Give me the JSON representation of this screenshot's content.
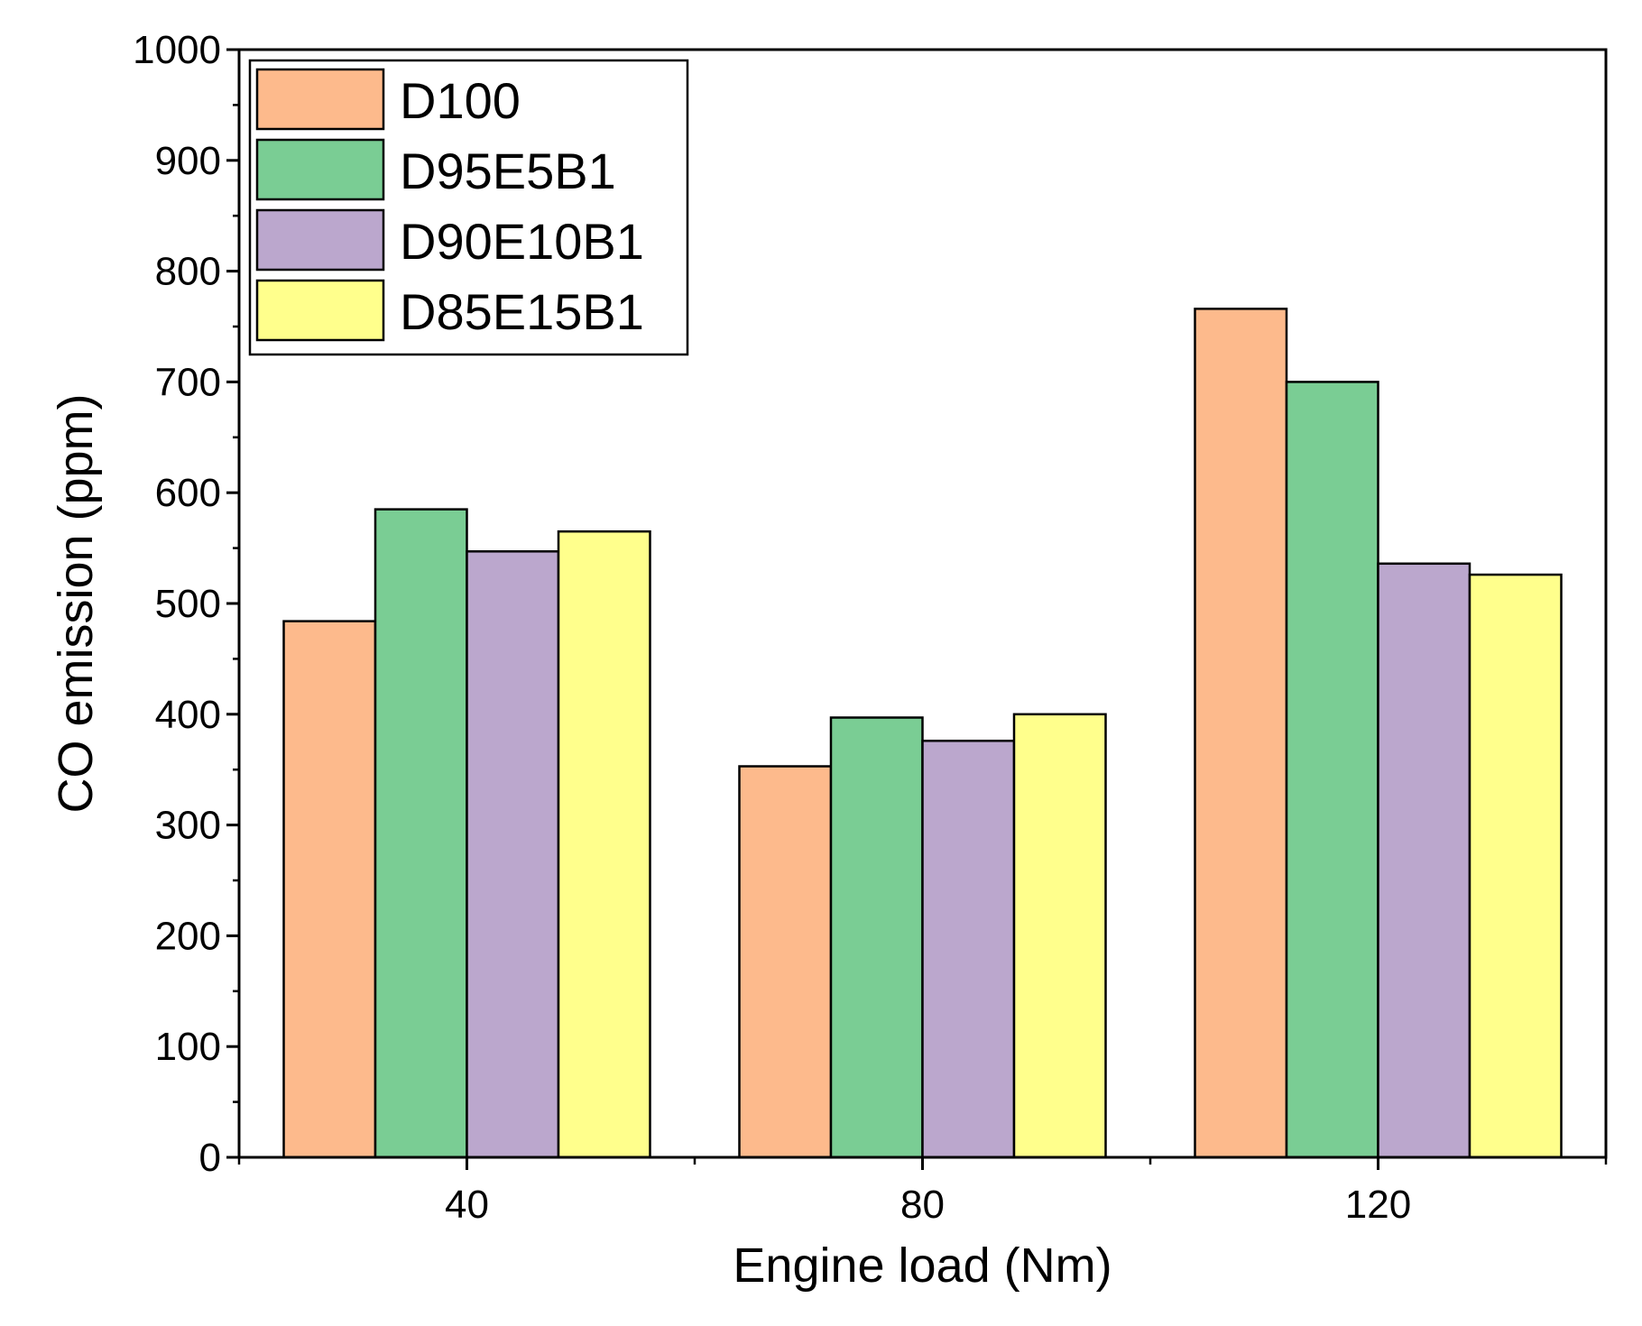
{
  "chart_data": {
    "type": "bar",
    "title": "",
    "xlabel": "Engine load (Nm)",
    "ylabel": "CO emission (ppm)",
    "categories": [
      "40",
      "80",
      "120"
    ],
    "ylim": [
      0,
      1000
    ],
    "yticks": [
      0,
      100,
      200,
      300,
      400,
      500,
      600,
      700,
      800,
      900,
      1000
    ],
    "grid": false,
    "legend_position": "top-left",
    "series": [
      {
        "name": "D100",
        "color": "#FDBA8C",
        "values": [
          484,
          353,
          766
        ]
      },
      {
        "name": "D95E5B1",
        "color": "#7ACD94",
        "values": [
          585,
          397,
          700
        ]
      },
      {
        "name": "D90E10B1",
        "color": "#BBA7CD",
        "values": [
          547,
          376,
          536
        ]
      },
      {
        "name": "D85E15B1",
        "color": "#FFFF8C",
        "values": [
          565,
          400,
          526
        ]
      }
    ]
  }
}
